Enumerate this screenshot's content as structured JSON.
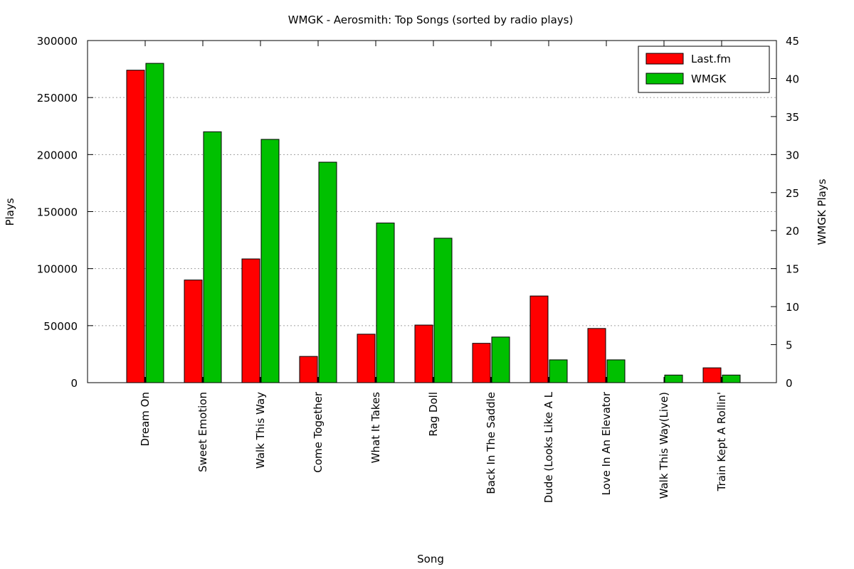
{
  "chart_data": {
    "type": "bar",
    "title": "WMGK - Aerosmith: Top Songs (sorted by radio plays)",
    "xlabel": "Song",
    "ylabel": "Plays",
    "y2label": "WMGK Plays",
    "ylim": [
      0,
      300000
    ],
    "y2lim": [
      0,
      45
    ],
    "yticks": [
      0,
      50000,
      100000,
      150000,
      200000,
      250000,
      300000
    ],
    "y2ticks": [
      0,
      5,
      10,
      15,
      20,
      25,
      30,
      35,
      40,
      45
    ],
    "grid": true,
    "legend_position": "top-right",
    "categories": [
      "Dream On",
      "Sweet Emotion",
      "Walk This Way",
      "Come Together",
      "What It Takes",
      "Rag Doll",
      "Back In The Saddle",
      "Dude (Looks Like A L",
      "Love In An Elevator",
      "Walk This Way(Live)",
      "Train Kept A Rollin'"
    ],
    "series": [
      {
        "name": "Last.fm",
        "axis": "left",
        "color": "#ff0000",
        "values": [
          274000,
          90000,
          108500,
          23000,
          42500,
          50500,
          34500,
          76000,
          47500,
          0,
          13000
        ]
      },
      {
        "name": "WMGK",
        "axis": "right",
        "color": "#00c000",
        "values": [
          42,
          33,
          32,
          29,
          21,
          19,
          6,
          3,
          3,
          1,
          1
        ]
      }
    ]
  }
}
